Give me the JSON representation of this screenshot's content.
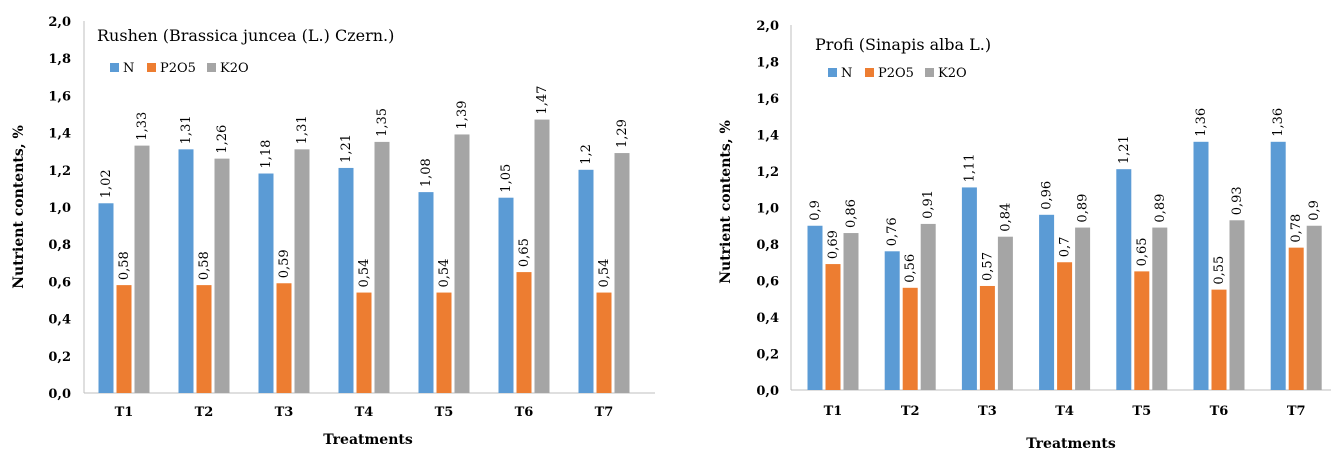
{
  "chart_data": [
    {
      "type": "bar",
      "title": "Rushen (Brassica juncea (L.) Czern.)",
      "xlabel": "Treatments",
      "ylabel": "Nutrient contents, %",
      "ylim": [
        0,
        2.0
      ],
      "yticks": [
        "0,0",
        "0,2",
        "0,4",
        "0,6",
        "0,8",
        "1,0",
        "1,2",
        "1,4",
        "1,6",
        "1,8",
        "2,0"
      ],
      "categories": [
        "T1",
        "T2",
        "T3",
        "T4",
        "T5",
        "T6",
        "T7"
      ],
      "legend_position": "top-left",
      "grid": false,
      "series": [
        {
          "name": "N",
          "color": "#5b9bd5",
          "values": [
            1.02,
            1.31,
            1.18,
            1.21,
            1.08,
            1.05,
            1.2
          ],
          "labels": [
            "1,02",
            "1,31",
            "1,18",
            "1,21",
            "1,08",
            "1,05",
            "1,2"
          ]
        },
        {
          "name": "P2O5",
          "color": "#ed7d31",
          "values": [
            0.58,
            0.58,
            0.59,
            0.54,
            0.54,
            0.65,
            0.54
          ],
          "labels": [
            "0,58",
            "0,58",
            "0,59",
            "0,54",
            "0,54",
            "0,65",
            "0,54"
          ]
        },
        {
          "name": "K2O",
          "color": "#a5a5a5",
          "values": [
            1.33,
            1.26,
            1.31,
            1.35,
            1.39,
            1.47,
            1.29
          ],
          "labels": [
            "1,33",
            "1,26",
            "1,31",
            "1,35",
            "1,39",
            "1,47",
            "1,29"
          ]
        }
      ]
    },
    {
      "type": "bar",
      "title": "Profi (Sinapis alba L.)",
      "xlabel": "Treatments",
      "ylabel": "Nutrient contents, %",
      "ylim": [
        0,
        2.0
      ],
      "yticks": [
        "0,0",
        "0,2",
        "0,4",
        "0,6",
        "0,8",
        "1,0",
        "1,2",
        "1,4",
        "1,6",
        "1,8",
        "2,0"
      ],
      "categories": [
        "T1",
        "T2",
        "T3",
        "T4",
        "T5",
        "T6",
        "T7"
      ],
      "legend_position": "top-left",
      "grid": false,
      "series": [
        {
          "name": "N",
          "color": "#5b9bd5",
          "values": [
            0.9,
            0.76,
            1.11,
            0.96,
            1.21,
            1.36,
            1.36
          ],
          "labels": [
            "0,9",
            "0,76",
            "1,11",
            "0,96",
            "1,21",
            "1,36",
            "1,36"
          ]
        },
        {
          "name": "P2O5",
          "color": "#ed7d31",
          "values": [
            0.69,
            0.56,
            0.57,
            0.7,
            0.65,
            0.55,
            0.78
          ],
          "labels": [
            "0,69",
            "0,56",
            "0,57",
            "0,7",
            "0,65",
            "0,55",
            "0,78"
          ]
        },
        {
          "name": "K2O",
          "color": "#a5a5a5",
          "values": [
            0.86,
            0.91,
            0.84,
            0.89,
            0.89,
            0.93,
            0.9
          ],
          "labels": [
            "0,86",
            "0,91",
            "0,84",
            "0,89",
            "0,89",
            "0,93",
            "0,9"
          ]
        }
      ]
    }
  ]
}
